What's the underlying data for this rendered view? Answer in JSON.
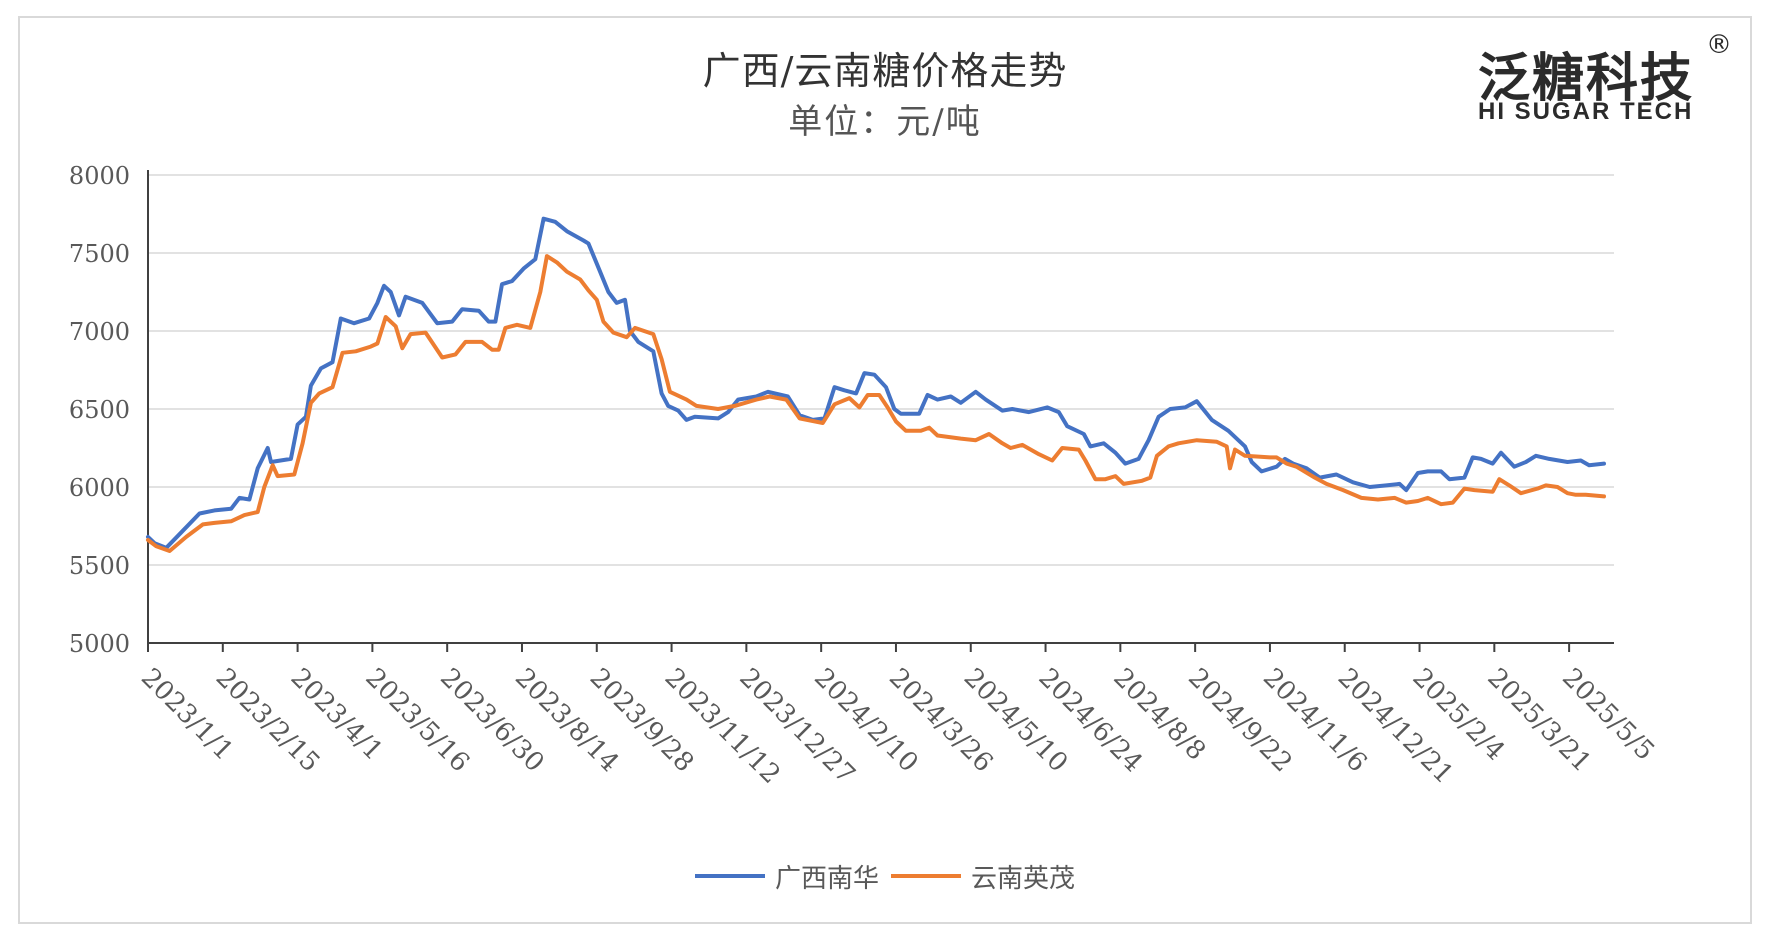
{
  "header": {
    "title": "广西/云南糖价格走势",
    "subtitle": "单位：元/吨"
  },
  "logo": {
    "cn": "泛糖科技",
    "reg": "®",
    "en": "HI SUGAR TECH"
  },
  "chart_data": {
    "type": "line",
    "title": "广西/云南糖价格走势",
    "subtitle": "单位：元/吨",
    "xlabel": "",
    "ylabel": "",
    "ylim": [
      5000,
      8000
    ],
    "yticks": [
      5000,
      5500,
      6000,
      6500,
      7000,
      7500,
      8000
    ],
    "xlim": [
      "2023-01-01",
      "2025-06-01"
    ],
    "x_tick_labels": [
      "2023/1/1",
      "2023/2/15",
      "2023/4/1",
      "2023/5/16",
      "2023/6/30",
      "2023/8/14",
      "2023/9/28",
      "2023/11/12",
      "2023/12/27",
      "2024/2/10",
      "2024/3/26",
      "2024/5/10",
      "2024/6/24",
      "2024/8/8",
      "2024/9/22",
      "2024/11/6",
      "2024/12/21",
      "2025/2/4",
      "2025/3/21",
      "2025/5/5"
    ],
    "grid": true,
    "legend_position": "bottom",
    "series": [
      {
        "name": "广西南华",
        "color": "#4472c4",
        "points": [
          [
            "2023-01-01",
            5680
          ],
          [
            "2023-01-05",
            5640
          ],
          [
            "2023-01-12",
            5610
          ],
          [
            "2023-01-22",
            5720
          ],
          [
            "2023-02-01",
            5830
          ],
          [
            "2023-02-10",
            5850
          ],
          [
            "2023-02-20",
            5860
          ],
          [
            "2023-02-25",
            5930
          ],
          [
            "2023-03-03",
            5920
          ],
          [
            "2023-03-08",
            6120
          ],
          [
            "2023-03-14",
            6250
          ],
          [
            "2023-03-16",
            6160
          ],
          [
            "2023-03-28",
            6180
          ],
          [
            "2023-04-01",
            6400
          ],
          [
            "2023-04-06",
            6450
          ],
          [
            "2023-04-09",
            6650
          ],
          [
            "2023-04-15",
            6760
          ],
          [
            "2023-04-22",
            6800
          ],
          [
            "2023-04-27",
            7080
          ],
          [
            "2023-05-05",
            7050
          ],
          [
            "2023-05-14",
            7080
          ],
          [
            "2023-05-19",
            7180
          ],
          [
            "2023-05-23",
            7290
          ],
          [
            "2023-05-27",
            7250
          ],
          [
            "2023-06-01",
            7100
          ],
          [
            "2023-06-05",
            7220
          ],
          [
            "2023-06-15",
            7180
          ],
          [
            "2023-06-24",
            7050
          ],
          [
            "2023-07-03",
            7060
          ],
          [
            "2023-07-09",
            7140
          ],
          [
            "2023-07-19",
            7130
          ],
          [
            "2023-07-25",
            7060
          ],
          [
            "2023-07-29",
            7060
          ],
          [
            "2023-08-02",
            7300
          ],
          [
            "2023-08-08",
            7320
          ],
          [
            "2023-08-15",
            7400
          ],
          [
            "2023-08-22",
            7460
          ],
          [
            "2023-08-27",
            7720
          ],
          [
            "2023-09-03",
            7700
          ],
          [
            "2023-09-10",
            7640
          ],
          [
            "2023-09-20",
            7580
          ],
          [
            "2023-09-23",
            7560
          ],
          [
            "2023-09-30",
            7380
          ],
          [
            "2023-10-05",
            7250
          ],
          [
            "2023-10-10",
            7180
          ],
          [
            "2023-10-15",
            7200
          ],
          [
            "2023-10-18",
            7000
          ],
          [
            "2023-10-23",
            6930
          ],
          [
            "2023-11-01",
            6870
          ],
          [
            "2023-11-06",
            6600
          ],
          [
            "2023-11-10",
            6520
          ],
          [
            "2023-11-16",
            6490
          ],
          [
            "2023-11-21",
            6430
          ],
          [
            "2023-11-26",
            6450
          ],
          [
            "2023-12-10",
            6440
          ],
          [
            "2023-12-16",
            6480
          ],
          [
            "2023-12-22",
            6560
          ],
          [
            "2024-01-02",
            6580
          ],
          [
            "2024-01-09",
            6610
          ],
          [
            "2024-01-21",
            6580
          ],
          [
            "2024-01-28",
            6460
          ],
          [
            "2024-02-05",
            6430
          ],
          [
            "2024-02-12",
            6440
          ],
          [
            "2024-02-18",
            6640
          ],
          [
            "2024-02-24",
            6620
          ],
          [
            "2024-03-02",
            6600
          ],
          [
            "2024-03-07",
            6730
          ],
          [
            "2024-03-13",
            6720
          ],
          [
            "2024-03-20",
            6640
          ],
          [
            "2024-03-25",
            6500
          ],
          [
            "2024-03-29",
            6470
          ],
          [
            "2024-04-09",
            6470
          ],
          [
            "2024-04-14",
            6590
          ],
          [
            "2024-04-20",
            6560
          ],
          [
            "2024-04-28",
            6580
          ],
          [
            "2024-05-04",
            6540
          ],
          [
            "2024-05-13",
            6610
          ],
          [
            "2024-05-19",
            6560
          ],
          [
            "2024-05-29",
            6490
          ],
          [
            "2024-06-04",
            6500
          ],
          [
            "2024-06-14",
            6480
          ],
          [
            "2024-06-25",
            6510
          ],
          [
            "2024-07-02",
            6480
          ],
          [
            "2024-07-07",
            6390
          ],
          [
            "2024-07-17",
            6340
          ],
          [
            "2024-07-21",
            6260
          ],
          [
            "2024-07-29",
            6280
          ],
          [
            "2024-08-05",
            6220
          ],
          [
            "2024-08-11",
            6150
          ],
          [
            "2024-08-19",
            6180
          ],
          [
            "2024-08-25",
            6300
          ],
          [
            "2024-08-31",
            6450
          ],
          [
            "2024-09-07",
            6500
          ],
          [
            "2024-09-16",
            6510
          ],
          [
            "2024-09-23",
            6550
          ],
          [
            "2024-10-02",
            6430
          ],
          [
            "2024-10-12",
            6360
          ],
          [
            "2024-10-22",
            6260
          ],
          [
            "2024-10-26",
            6160
          ],
          [
            "2024-11-01",
            6100
          ],
          [
            "2024-11-10",
            6130
          ],
          [
            "2024-11-15",
            6180
          ],
          [
            "2024-11-20",
            6150
          ],
          [
            "2024-11-28",
            6120
          ],
          [
            "2024-12-06",
            6060
          ],
          [
            "2024-12-16",
            6080
          ],
          [
            "2024-12-26",
            6030
          ],
          [
            "2025-01-05",
            6000
          ],
          [
            "2025-01-15",
            6010
          ],
          [
            "2025-01-23",
            6020
          ],
          [
            "2025-01-27",
            5980
          ],
          [
            "2025-02-03",
            6090
          ],
          [
            "2025-02-09",
            6100
          ],
          [
            "2025-02-17",
            6100
          ],
          [
            "2025-02-22",
            6050
          ],
          [
            "2025-03-03",
            6060
          ],
          [
            "2025-03-08",
            6190
          ],
          [
            "2025-03-13",
            6180
          ],
          [
            "2025-03-20",
            6150
          ],
          [
            "2025-03-25",
            6220
          ],
          [
            "2025-04-02",
            6130
          ],
          [
            "2025-04-09",
            6160
          ],
          [
            "2025-04-15",
            6200
          ],
          [
            "2025-04-23",
            6180
          ],
          [
            "2025-05-04",
            6160
          ],
          [
            "2025-05-12",
            6170
          ],
          [
            "2025-05-17",
            6140
          ],
          [
            "2025-05-26",
            6150
          ]
        ]
      },
      {
        "name": "云南英茂",
        "color": "#ed7d31",
        "points": [
          [
            "2023-01-01",
            5660
          ],
          [
            "2023-01-06",
            5620
          ],
          [
            "2023-01-14",
            5590
          ],
          [
            "2023-01-24",
            5680
          ],
          [
            "2023-02-03",
            5760
          ],
          [
            "2023-02-10",
            5770
          ],
          [
            "2023-02-20",
            5780
          ],
          [
            "2023-02-28",
            5820
          ],
          [
            "2023-03-08",
            5840
          ],
          [
            "2023-03-12",
            6000
          ],
          [
            "2023-03-17",
            6140
          ],
          [
            "2023-03-20",
            6070
          ],
          [
            "2023-03-30",
            6080
          ],
          [
            "2023-04-04",
            6280
          ],
          [
            "2023-04-09",
            6540
          ],
          [
            "2023-04-14",
            6600
          ],
          [
            "2023-04-22",
            6640
          ],
          [
            "2023-04-28",
            6860
          ],
          [
            "2023-05-06",
            6870
          ],
          [
            "2023-05-15",
            6900
          ],
          [
            "2023-05-19",
            6920
          ],
          [
            "2023-05-24",
            7090
          ],
          [
            "2023-05-30",
            7030
          ],
          [
            "2023-06-03",
            6890
          ],
          [
            "2023-06-08",
            6980
          ],
          [
            "2023-06-17",
            6990
          ],
          [
            "2023-06-27",
            6830
          ],
          [
            "2023-07-05",
            6850
          ],
          [
            "2023-07-11",
            6930
          ],
          [
            "2023-07-21",
            6930
          ],
          [
            "2023-07-27",
            6880
          ],
          [
            "2023-07-31",
            6880
          ],
          [
            "2023-08-04",
            7020
          ],
          [
            "2023-08-11",
            7040
          ],
          [
            "2023-08-19",
            7020
          ],
          [
            "2023-08-25",
            7250
          ],
          [
            "2023-08-29",
            7480
          ],
          [
            "2023-09-04",
            7440
          ],
          [
            "2023-09-10",
            7380
          ],
          [
            "2023-09-18",
            7330
          ],
          [
            "2023-09-23",
            7260
          ],
          [
            "2023-09-28",
            7200
          ],
          [
            "2023-10-02",
            7060
          ],
          [
            "2023-10-08",
            6990
          ],
          [
            "2023-10-16",
            6960
          ],
          [
            "2023-10-21",
            7020
          ],
          [
            "2023-11-01",
            6980
          ],
          [
            "2023-11-06",
            6820
          ],
          [
            "2023-11-11",
            6610
          ],
          [
            "2023-11-21",
            6560
          ],
          [
            "2023-11-27",
            6520
          ],
          [
            "2023-12-10",
            6500
          ],
          [
            "2023-12-20",
            6520
          ],
          [
            "2024-01-02",
            6560
          ],
          [
            "2024-01-10",
            6580
          ],
          [
            "2024-01-20",
            6560
          ],
          [
            "2024-01-28",
            6440
          ],
          [
            "2024-02-11",
            6410
          ],
          [
            "2024-02-18",
            6530
          ],
          [
            "2024-02-27",
            6570
          ],
          [
            "2024-03-04",
            6510
          ],
          [
            "2024-03-09",
            6590
          ],
          [
            "2024-03-16",
            6590
          ],
          [
            "2024-03-21",
            6510
          ],
          [
            "2024-03-26",
            6420
          ],
          [
            "2024-04-01",
            6360
          ],
          [
            "2024-04-10",
            6360
          ],
          [
            "2024-04-15",
            6380
          ],
          [
            "2024-04-20",
            6330
          ],
          [
            "2024-05-04",
            6310
          ],
          [
            "2024-05-13",
            6300
          ],
          [
            "2024-05-21",
            6340
          ],
          [
            "2024-05-29",
            6280
          ],
          [
            "2024-06-03",
            6250
          ],
          [
            "2024-06-10",
            6270
          ],
          [
            "2024-06-20",
            6210
          ],
          [
            "2024-06-28",
            6170
          ],
          [
            "2024-07-04",
            6250
          ],
          [
            "2024-07-14",
            6240
          ],
          [
            "2024-07-18",
            6170
          ],
          [
            "2024-07-24",
            6050
          ],
          [
            "2024-07-30",
            6050
          ],
          [
            "2024-08-05",
            6070
          ],
          [
            "2024-08-10",
            6020
          ],
          [
            "2024-08-21",
            6040
          ],
          [
            "2024-08-26",
            6060
          ],
          [
            "2024-08-30",
            6200
          ],
          [
            "2024-09-06",
            6260
          ],
          [
            "2024-09-12",
            6280
          ],
          [
            "2024-09-23",
            6300
          ],
          [
            "2024-10-05",
            6290
          ],
          [
            "2024-10-11",
            6260
          ],
          [
            "2024-10-13",
            6120
          ],
          [
            "2024-10-16",
            6240
          ],
          [
            "2024-10-22",
            6200
          ],
          [
            "2024-11-06",
            6190
          ],
          [
            "2024-11-10",
            6190
          ],
          [
            "2024-11-16",
            6150
          ],
          [
            "2024-11-22",
            6130
          ],
          [
            "2024-12-03",
            6060
          ],
          [
            "2024-12-10",
            6020
          ],
          [
            "2024-12-20",
            5980
          ],
          [
            "2024-12-31",
            5930
          ],
          [
            "2025-01-10",
            5920
          ],
          [
            "2025-01-20",
            5930
          ],
          [
            "2025-01-27",
            5900
          ],
          [
            "2025-02-03",
            5910
          ],
          [
            "2025-02-09",
            5930
          ],
          [
            "2025-02-17",
            5890
          ],
          [
            "2025-02-24",
            5900
          ],
          [
            "2025-03-03",
            5990
          ],
          [
            "2025-03-09",
            5980
          ],
          [
            "2025-03-20",
            5970
          ],
          [
            "2025-03-24",
            6050
          ],
          [
            "2025-03-30",
            6010
          ],
          [
            "2025-04-06",
            5960
          ],
          [
            "2025-04-16",
            5990
          ],
          [
            "2025-04-21",
            6010
          ],
          [
            "2025-04-28",
            6000
          ],
          [
            "2025-05-04",
            5960
          ],
          [
            "2025-05-09",
            5950
          ],
          [
            "2025-05-15",
            5950
          ],
          [
            "2025-05-26",
            5940
          ]
        ]
      }
    ]
  }
}
